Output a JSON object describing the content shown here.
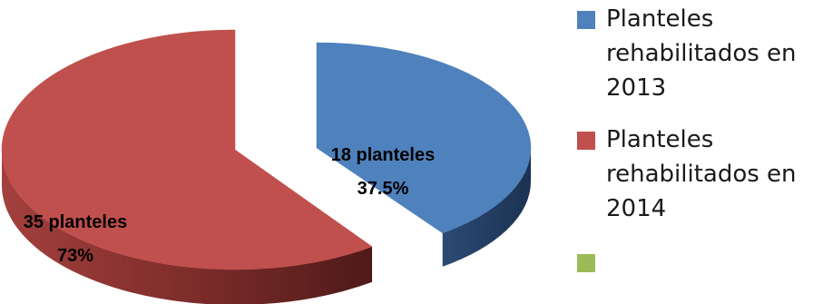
{
  "chart_data": {
    "type": "pie",
    "style": "3d-exploded",
    "title": "",
    "slices": [
      {
        "name": "Planteles rehabilitados en 2013",
        "count_label": "18 planteles",
        "percent_label": "37.5%",
        "value": 18,
        "color": "#4f81bd"
      },
      {
        "name": "Planteles rehabilitados en 2014",
        "count_label": "35 planteles",
        "percent_label": "73%",
        "value": 35,
        "color": "#c0504d"
      },
      {
        "name": "",
        "count_label": "",
        "percent_label": "",
        "value": 0,
        "color": "#9bbb59"
      }
    ],
    "legend": {
      "position": "right"
    }
  }
}
